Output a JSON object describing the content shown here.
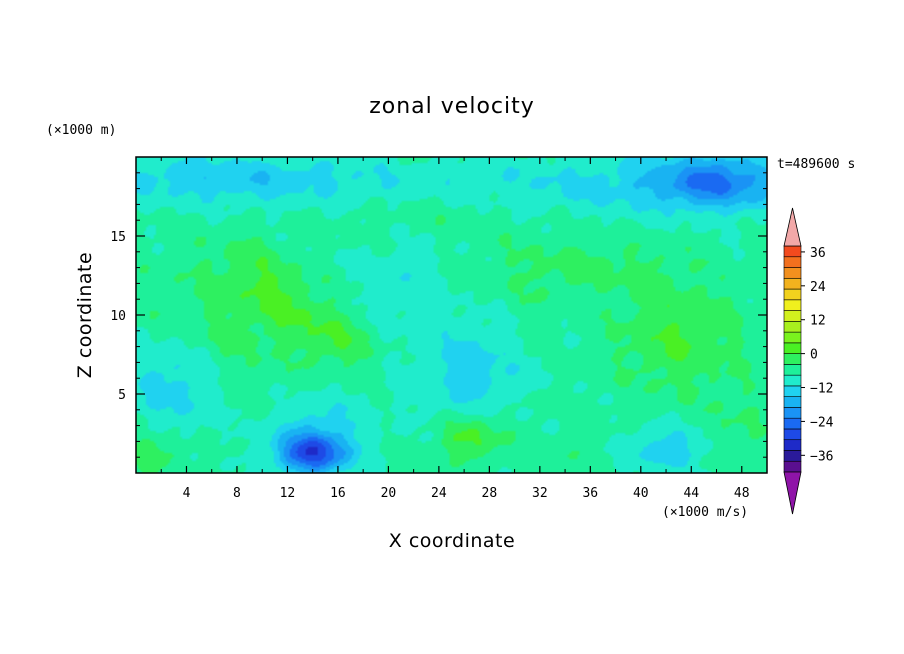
{
  "chart_data": {
    "type": "heatmap",
    "title": "zonal velocity",
    "xlabel": "X coordinate",
    "ylabel": "Z coordinate",
    "x_scale_note": "(×1000 m/s)",
    "y_scale_note": "(×1000 m)",
    "time_label": "t=489600 s",
    "xlim": [
      0,
      50
    ],
    "ylim": [
      0,
      20
    ],
    "x_ticks": [
      4,
      8,
      12,
      16,
      20,
      24,
      28,
      32,
      36,
      40,
      44,
      48
    ],
    "y_ticks": [
      5,
      10,
      15
    ],
    "colorbar": {
      "min": -40,
      "max": 40,
      "step": 4,
      "tick_values": [
        -36,
        -24,
        -12,
        0,
        12,
        24,
        36
      ],
      "tick_labels": [
        "−36",
        "−24",
        "−12",
        "0",
        "12",
        "24",
        "36"
      ],
      "colors": [
        "#5a0f8f",
        "#2a1a9a",
        "#1e2ac8",
        "#1e4ae6",
        "#1a6af2",
        "#1a93f5",
        "#19b3f2",
        "#20d2f0",
        "#20eccc",
        "#1ef09a",
        "#2ef060",
        "#4af024",
        "#7af21e",
        "#a8f01e",
        "#d2f01e",
        "#f0f01e",
        "#f2d21e",
        "#f2b21e",
        "#f2901e",
        "#f2701e",
        "#f24a1e"
      ],
      "under_color": "#8f14a8",
      "over_color": "#f2a8a8"
    },
    "field_blobs": [
      {
        "x": 11,
        "z": 11.5,
        "sx": 4.5,
        "sz": 2.2,
        "rot": -0.55,
        "v": 7
      },
      {
        "x": 16,
        "z": 8.5,
        "sx": 2.6,
        "sz": 1.6,
        "rot": -0.4,
        "v": 6
      },
      {
        "x": 7,
        "z": 9.5,
        "sx": 6,
        "sz": 3.5,
        "rot": -0.45,
        "v": 4
      },
      {
        "x": 14,
        "z": 1.2,
        "sx": 2.8,
        "sz": 1.3,
        "rot": 0,
        "v": -22
      },
      {
        "x": 14.5,
        "z": 3,
        "sx": 4,
        "sz": 2,
        "rot": 0,
        "v": -6
      },
      {
        "x": 26.5,
        "z": 2.2,
        "sx": 2.6,
        "sz": 1.4,
        "rot": 0,
        "v": 9
      },
      {
        "x": 34,
        "z": 1,
        "sx": 2.5,
        "sz": 1.2,
        "rot": 0,
        "v": 2
      },
      {
        "x": 27,
        "z": 6.5,
        "sx": 5,
        "sz": 3.2,
        "rot": 0.15,
        "v": -7
      },
      {
        "x": 43,
        "z": 8.5,
        "sx": 5,
        "sz": 3.5,
        "rot": 0,
        "v": 7
      },
      {
        "x": 46,
        "z": 18.5,
        "sx": 5,
        "sz": 1.8,
        "rot": 0,
        "v": -14
      },
      {
        "x": 8,
        "z": 18.6,
        "sx": 12,
        "sz": 1.6,
        "rot": 0,
        "v": -8
      },
      {
        "x": 38,
        "z": 18.2,
        "sx": 14,
        "sz": 1.8,
        "rot": 0,
        "v": -6
      },
      {
        "x": 36,
        "z": 13,
        "sx": 7,
        "sz": 1.8,
        "rot": 0,
        "v": 4
      },
      {
        "x": 24,
        "z": 16.5,
        "sx": 7,
        "sz": 1.2,
        "rot": 0,
        "v": 2
      },
      {
        "x": 3,
        "z": 5.5,
        "sx": 3.5,
        "sz": 3,
        "rot": 0,
        "v": -7
      },
      {
        "x": 1.5,
        "z": 1.3,
        "sx": 2.5,
        "sz": 1.3,
        "rot": 0,
        "v": 6
      },
      {
        "x": 42,
        "z": 1.5,
        "sx": 3,
        "sz": 1.4,
        "rot": 0,
        "v": -8
      },
      {
        "x": 31,
        "z": 9,
        "sx": 3,
        "sz": 6,
        "rot": 0,
        "v": 2
      },
      {
        "x": 21,
        "z": 12,
        "sx": 3.5,
        "sz": 2.5,
        "rot": 0,
        "v": -4
      },
      {
        "x": 48,
        "z": 3,
        "sx": 2.5,
        "sz": 2.5,
        "rot": 0,
        "v": 3
      }
    ],
    "background_value": -3
  }
}
